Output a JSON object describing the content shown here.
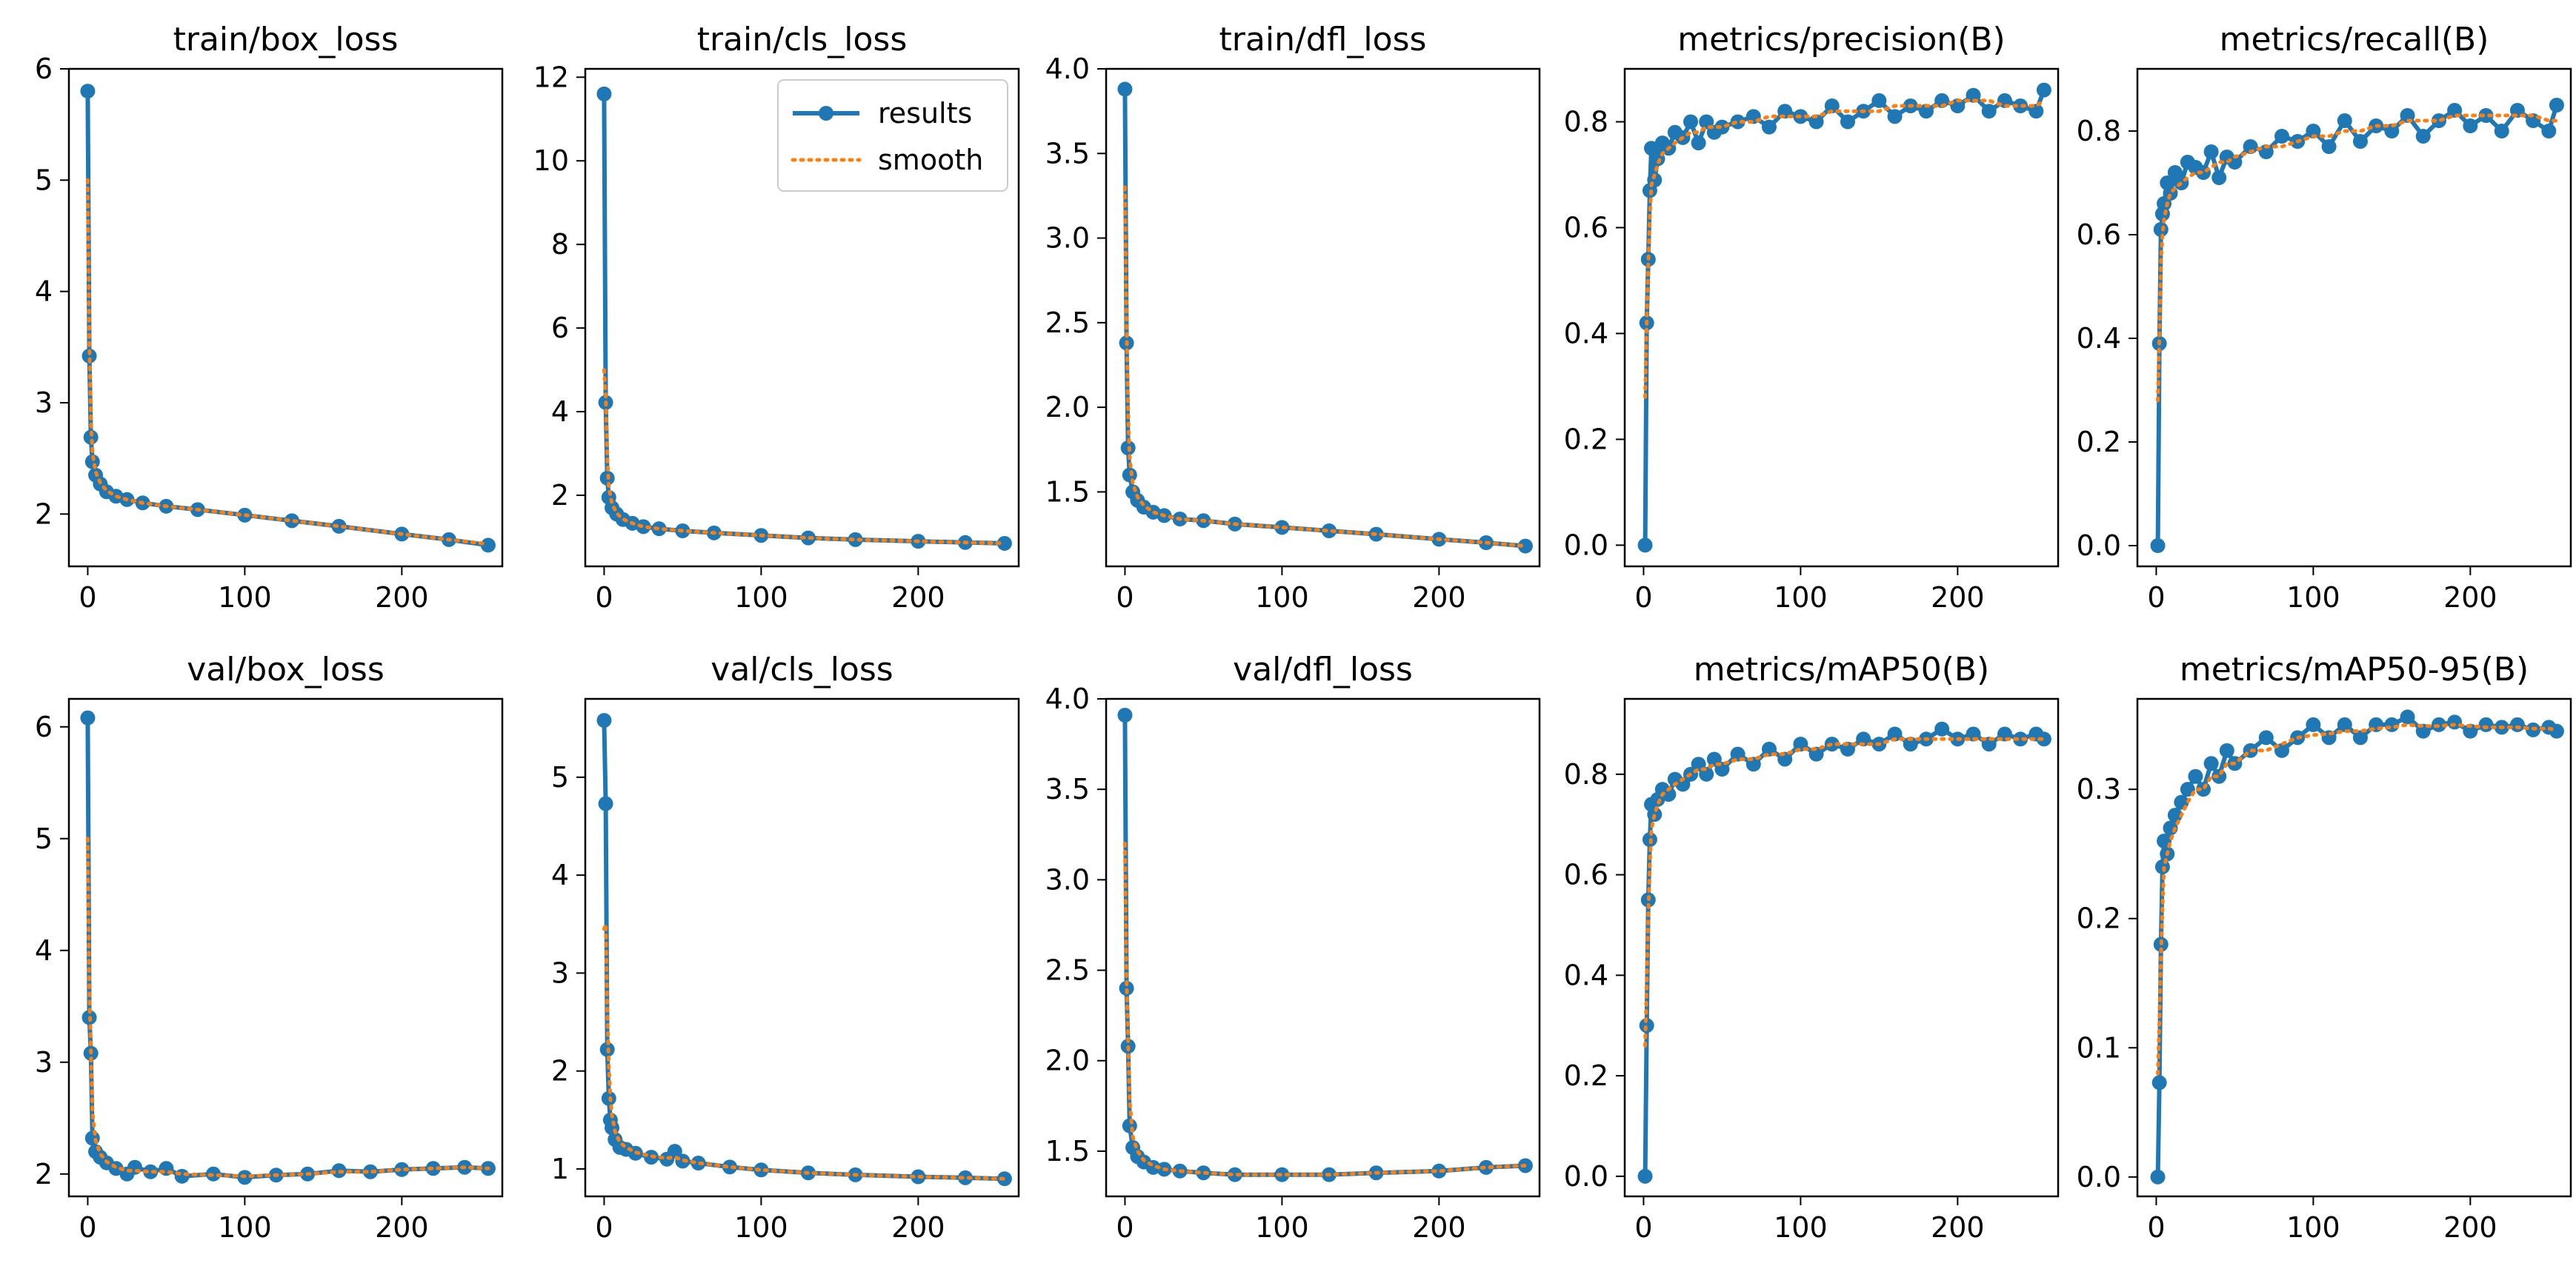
{
  "colors": {
    "results": "#1f77b4",
    "smooth": "#ff7f0e",
    "axes": "#000000"
  },
  "legend": {
    "location": "upper right",
    "panel": "train/cls_loss",
    "entries": [
      "results",
      "smooth"
    ]
  },
  "chart_data": [
    {
      "type": "line",
      "title": "train/box_loss",
      "xlabel": "",
      "ylabel": "",
      "xlim": [
        -12,
        264
      ],
      "ylim": [
        1.53,
        6.0
      ],
      "xticks": [
        0,
        100,
        200
      ],
      "yticks": [
        2,
        3,
        4,
        5,
        6
      ],
      "x": [
        0,
        1,
        2,
        3,
        5,
        8,
        12,
        18,
        25,
        35,
        50,
        70,
        100,
        130,
        160,
        200,
        230,
        255
      ],
      "series": [
        {
          "name": "results",
          "values": [
            5.8,
            3.42,
            2.69,
            2.47,
            2.35,
            2.27,
            2.2,
            2.16,
            2.13,
            2.1,
            2.07,
            2.04,
            1.99,
            1.94,
            1.89,
            1.82,
            1.77,
            1.72
          ]
        },
        {
          "name": "smooth",
          "values": [
            5.0,
            3.55,
            2.85,
            2.55,
            2.38,
            2.28,
            2.21,
            2.16,
            2.13,
            2.1,
            2.07,
            2.04,
            1.99,
            1.94,
            1.89,
            1.82,
            1.77,
            1.73
          ]
        }
      ]
    },
    {
      "type": "line",
      "title": "train/cls_loss",
      "xlabel": "",
      "ylabel": "",
      "xlim": [
        -12,
        264
      ],
      "ylim": [
        0.3,
        12.2
      ],
      "xticks": [
        0,
        100,
        200
      ],
      "yticks": [
        2,
        4,
        6,
        8,
        10,
        12
      ],
      "x": [
        0,
        1,
        2,
        3,
        5,
        8,
        12,
        18,
        25,
        35,
        50,
        70,
        100,
        130,
        160,
        200,
        230,
        255
      ],
      "series": [
        {
          "name": "results",
          "values": [
            11.6,
            4.22,
            2.41,
            1.95,
            1.7,
            1.55,
            1.42,
            1.33,
            1.25,
            1.2,
            1.15,
            1.1,
            1.04,
            0.98,
            0.94,
            0.9,
            0.87,
            0.85
          ]
        },
        {
          "name": "smooth",
          "values": [
            5.0,
            4.4,
            2.9,
            2.2,
            1.8,
            1.57,
            1.43,
            1.33,
            1.25,
            1.2,
            1.15,
            1.1,
            1.04,
            0.98,
            0.94,
            0.9,
            0.87,
            0.85
          ]
        }
      ]
    },
    {
      "type": "line",
      "title": "train/dfl_loss",
      "xlabel": "",
      "ylabel": "",
      "xlim": [
        -12,
        264
      ],
      "ylim": [
        1.06,
        4.0
      ],
      "xticks": [
        0,
        100,
        200
      ],
      "yticks": [
        1.5,
        2.0,
        2.5,
        3.0,
        3.5,
        4.0
      ],
      "x": [
        0,
        1,
        2,
        3,
        5,
        8,
        12,
        18,
        25,
        35,
        50,
        70,
        100,
        130,
        160,
        200,
        230,
        255
      ],
      "series": [
        {
          "name": "results",
          "values": [
            3.88,
            2.38,
            1.76,
            1.6,
            1.5,
            1.45,
            1.41,
            1.38,
            1.36,
            1.34,
            1.33,
            1.31,
            1.29,
            1.27,
            1.25,
            1.22,
            1.2,
            1.18
          ]
        },
        {
          "name": "smooth",
          "values": [
            3.3,
            2.5,
            1.95,
            1.7,
            1.55,
            1.47,
            1.42,
            1.38,
            1.36,
            1.34,
            1.33,
            1.31,
            1.29,
            1.27,
            1.25,
            1.22,
            1.2,
            1.18
          ]
        }
      ]
    },
    {
      "type": "line",
      "title": "metrics/precision(B)",
      "xlabel": "",
      "ylabel": "",
      "xlim": [
        -12,
        264
      ],
      "ylim": [
        -0.04,
        0.9
      ],
      "xticks": [
        0,
        100,
        200
      ],
      "yticks": [
        0.0,
        0.2,
        0.4,
        0.6,
        0.8
      ],
      "x": [
        1,
        2,
        3,
        4,
        5,
        7,
        9,
        12,
        16,
        20,
        25,
        30,
        35,
        40,
        45,
        50,
        60,
        70,
        80,
        90,
        100,
        110,
        120,
        130,
        140,
        150,
        160,
        170,
        180,
        190,
        200,
        210,
        220,
        230,
        240,
        250,
        255
      ],
      "series": [
        {
          "name": "results",
          "values": [
            0.0,
            0.42,
            0.54,
            0.67,
            0.75,
            0.69,
            0.73,
            0.76,
            0.75,
            0.78,
            0.77,
            0.8,
            0.76,
            0.8,
            0.78,
            0.79,
            0.8,
            0.81,
            0.79,
            0.82,
            0.81,
            0.8,
            0.83,
            0.8,
            0.82,
            0.84,
            0.81,
            0.83,
            0.82,
            0.84,
            0.83,
            0.85,
            0.82,
            0.84,
            0.83,
            0.82,
            0.86
          ]
        },
        {
          "name": "smooth",
          "values": [
            0.28,
            0.42,
            0.53,
            0.62,
            0.68,
            0.7,
            0.72,
            0.74,
            0.75,
            0.76,
            0.77,
            0.78,
            0.78,
            0.79,
            0.79,
            0.79,
            0.8,
            0.8,
            0.81,
            0.81,
            0.81,
            0.81,
            0.82,
            0.82,
            0.82,
            0.82,
            0.83,
            0.83,
            0.83,
            0.83,
            0.84,
            0.84,
            0.84,
            0.83,
            0.83,
            0.83,
            0.84
          ]
        }
      ]
    },
    {
      "type": "line",
      "title": "metrics/recall(B)",
      "xlabel": "",
      "ylabel": "",
      "xlim": [
        -12,
        264
      ],
      "ylim": [
        -0.04,
        0.92
      ],
      "xticks": [
        0,
        100,
        200
      ],
      "yticks": [
        0.0,
        0.2,
        0.4,
        0.6,
        0.8
      ],
      "x": [
        1,
        2,
        3,
        4,
        5,
        7,
        9,
        12,
        16,
        20,
        25,
        30,
        35,
        40,
        45,
        50,
        60,
        70,
        80,
        90,
        100,
        110,
        120,
        130,
        140,
        150,
        160,
        170,
        180,
        190,
        200,
        210,
        220,
        230,
        240,
        250,
        255
      ],
      "series": [
        {
          "name": "results",
          "values": [
            0.0,
            0.39,
            0.61,
            0.64,
            0.66,
            0.7,
            0.68,
            0.72,
            0.7,
            0.74,
            0.73,
            0.72,
            0.76,
            0.71,
            0.75,
            0.74,
            0.77,
            0.76,
            0.79,
            0.78,
            0.8,
            0.77,
            0.82,
            0.78,
            0.81,
            0.8,
            0.83,
            0.79,
            0.82,
            0.84,
            0.81,
            0.83,
            0.8,
            0.84,
            0.82,
            0.8,
            0.85
          ]
        },
        {
          "name": "smooth",
          "values": [
            0.28,
            0.4,
            0.55,
            0.6,
            0.63,
            0.66,
            0.68,
            0.69,
            0.7,
            0.71,
            0.72,
            0.72,
            0.73,
            0.74,
            0.74,
            0.75,
            0.76,
            0.77,
            0.77,
            0.78,
            0.79,
            0.79,
            0.8,
            0.8,
            0.81,
            0.81,
            0.82,
            0.82,
            0.82,
            0.83,
            0.83,
            0.83,
            0.83,
            0.83,
            0.83,
            0.82,
            0.82
          ]
        }
      ]
    },
    {
      "type": "line",
      "title": "val/box_loss",
      "xlabel": "",
      "ylabel": "",
      "xlim": [
        -12,
        264
      ],
      "ylim": [
        1.8,
        6.25
      ],
      "xticks": [
        0,
        100,
        200
      ],
      "yticks": [
        2,
        3,
        4,
        5,
        6
      ],
      "x": [
        0,
        1,
        2,
        3,
        5,
        8,
        12,
        18,
        25,
        30,
        40,
        50,
        60,
        80,
        100,
        120,
        140,
        160,
        180,
        200,
        220,
        240,
        255
      ],
      "series": [
        {
          "name": "results",
          "values": [
            6.08,
            3.4,
            3.08,
            2.32,
            2.2,
            2.15,
            2.1,
            2.05,
            2.0,
            2.06,
            2.02,
            2.05,
            1.98,
            2.0,
            1.97,
            1.99,
            2.0,
            2.03,
            2.02,
            2.04,
            2.05,
            2.06,
            2.05
          ]
        },
        {
          "name": "smooth",
          "values": [
            5.0,
            3.65,
            3.1,
            2.55,
            2.3,
            2.18,
            2.11,
            2.06,
            2.03,
            2.03,
            2.02,
            2.02,
            2.0,
            1.99,
            1.98,
            1.99,
            2.0,
            2.02,
            2.02,
            2.04,
            2.05,
            2.06,
            2.05
          ]
        }
      ]
    },
    {
      "type": "line",
      "title": "val/cls_loss",
      "xlabel": "",
      "ylabel": "",
      "xlim": [
        -12,
        264
      ],
      "ylim": [
        0.72,
        5.8
      ],
      "xticks": [
        0,
        100,
        200
      ],
      "yticks": [
        1,
        2,
        3,
        4,
        5
      ],
      "x": [
        0,
        1,
        2,
        3,
        4,
        5,
        7,
        10,
        14,
        20,
        30,
        40,
        45,
        50,
        60,
        80,
        100,
        130,
        160,
        200,
        230,
        255
      ],
      "series": [
        {
          "name": "results",
          "values": [
            5.58,
            4.73,
            2.22,
            1.72,
            1.5,
            1.42,
            1.3,
            1.22,
            1.2,
            1.16,
            1.12,
            1.1,
            1.18,
            1.08,
            1.06,
            1.02,
            0.99,
            0.96,
            0.94,
            0.92,
            0.91,
            0.9
          ]
        },
        {
          "name": "smooth",
          "values": [
            3.45,
            3.5,
            2.6,
            2.05,
            1.72,
            1.55,
            1.38,
            1.27,
            1.22,
            1.17,
            1.13,
            1.11,
            1.12,
            1.09,
            1.06,
            1.02,
            0.99,
            0.96,
            0.94,
            0.92,
            0.91,
            0.9
          ]
        }
      ]
    },
    {
      "type": "line",
      "title": "val/dfl_loss",
      "xlabel": "",
      "ylabel": "",
      "xlim": [
        -12,
        264
      ],
      "ylim": [
        1.25,
        4.0
      ],
      "xticks": [
        0,
        100,
        200
      ],
      "yticks": [
        1.5,
        2.0,
        2.5,
        3.0,
        3.5,
        4.0
      ],
      "x": [
        0,
        1,
        2,
        3,
        5,
        8,
        12,
        18,
        25,
        35,
        50,
        70,
        100,
        130,
        160,
        200,
        230,
        255
      ],
      "series": [
        {
          "name": "results",
          "values": [
            3.91,
            2.4,
            2.08,
            1.64,
            1.52,
            1.47,
            1.44,
            1.41,
            1.4,
            1.39,
            1.38,
            1.37,
            1.37,
            1.37,
            1.38,
            1.39,
            1.41,
            1.42
          ]
        },
        {
          "name": "smooth",
          "values": [
            3.2,
            2.45,
            2.1,
            1.78,
            1.58,
            1.5,
            1.45,
            1.42,
            1.4,
            1.39,
            1.38,
            1.37,
            1.37,
            1.37,
            1.38,
            1.39,
            1.41,
            1.42
          ]
        }
      ]
    },
    {
      "type": "line",
      "title": "metrics/mAP50(B)",
      "xlabel": "",
      "ylabel": "",
      "xlim": [
        -12,
        264
      ],
      "ylim": [
        -0.04,
        0.95
      ],
      "xticks": [
        0,
        100,
        200
      ],
      "yticks": [
        0.0,
        0.2,
        0.4,
        0.6,
        0.8
      ],
      "x": [
        1,
        2,
        3,
        4,
        5,
        7,
        9,
        12,
        16,
        20,
        25,
        30,
        35,
        40,
        45,
        50,
        60,
        70,
        80,
        90,
        100,
        110,
        120,
        130,
        140,
        150,
        160,
        170,
        180,
        190,
        200,
        210,
        220,
        230,
        240,
        250,
        255
      ],
      "series": [
        {
          "name": "results",
          "values": [
            0.0,
            0.3,
            0.55,
            0.67,
            0.74,
            0.72,
            0.75,
            0.77,
            0.76,
            0.79,
            0.78,
            0.8,
            0.82,
            0.8,
            0.83,
            0.81,
            0.84,
            0.82,
            0.85,
            0.83,
            0.86,
            0.84,
            0.86,
            0.85,
            0.87,
            0.86,
            0.88,
            0.86,
            0.87,
            0.89,
            0.87,
            0.88,
            0.86,
            0.88,
            0.87,
            0.88,
            0.87
          ]
        },
        {
          "name": "smooth",
          "values": [
            0.26,
            0.38,
            0.52,
            0.62,
            0.69,
            0.72,
            0.74,
            0.76,
            0.77,
            0.78,
            0.79,
            0.8,
            0.81,
            0.81,
            0.82,
            0.82,
            0.83,
            0.83,
            0.84,
            0.84,
            0.85,
            0.85,
            0.86,
            0.86,
            0.86,
            0.86,
            0.87,
            0.87,
            0.87,
            0.87,
            0.87,
            0.87,
            0.87,
            0.87,
            0.87,
            0.87,
            0.87
          ]
        }
      ]
    },
    {
      "type": "line",
      "title": "metrics/mAP50-95(B)",
      "xlabel": "",
      "ylabel": "",
      "xlim": [
        -12,
        264
      ],
      "ylim": [
        -0.015,
        0.37
      ],
      "xticks": [
        0,
        100,
        200
      ],
      "yticks": [
        0.0,
        0.1,
        0.2,
        0.3
      ],
      "x": [
        1,
        2,
        3,
        4,
        5,
        7,
        9,
        12,
        16,
        20,
        25,
        30,
        35,
        40,
        45,
        50,
        60,
        70,
        80,
        90,
        100,
        110,
        120,
        130,
        140,
        150,
        160,
        170,
        180,
        190,
        200,
        210,
        220,
        230,
        240,
        250,
        255
      ],
      "series": [
        {
          "name": "results",
          "values": [
            0.0,
            0.073,
            0.18,
            0.24,
            0.26,
            0.25,
            0.27,
            0.28,
            0.29,
            0.3,
            0.31,
            0.3,
            0.32,
            0.31,
            0.33,
            0.32,
            0.33,
            0.34,
            0.33,
            0.34,
            0.35,
            0.34,
            0.35,
            0.34,
            0.35,
            0.35,
            0.356,
            0.345,
            0.35,
            0.352,
            0.345,
            0.35,
            0.348,
            0.35,
            0.346,
            0.348,
            0.345
          ]
        },
        {
          "name": "smooth",
          "values": [
            0.08,
            0.12,
            0.17,
            0.21,
            0.24,
            0.25,
            0.26,
            0.27,
            0.28,
            0.29,
            0.3,
            0.3,
            0.31,
            0.31,
            0.32,
            0.32,
            0.33,
            0.33,
            0.335,
            0.34,
            0.342,
            0.343,
            0.345,
            0.345,
            0.347,
            0.348,
            0.35,
            0.349,
            0.349,
            0.35,
            0.349,
            0.348,
            0.348,
            0.348,
            0.347,
            0.347,
            0.346
          ]
        }
      ]
    }
  ]
}
